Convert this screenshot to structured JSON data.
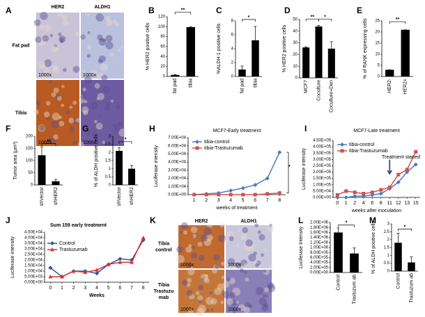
{
  "image_panels": [
    {
      "letter": "A",
      "columns": [
        "HER2",
        "ALDH1"
      ],
      "rows": [
        [
          "Fat pad"
        ],
        [
          "Tibia"
        ]
      ],
      "scale_label": "1000x"
    },
    {
      "letter": "K",
      "columns": [
        "HER2",
        "ALDH1"
      ],
      "rows": [
        [
          "Tibia",
          "control"
        ],
        [
          "Tibia",
          "Trastuzu",
          "mab"
        ]
      ],
      "scale_label": "1000x"
    }
  ],
  "chart_data": [
    {
      "type": "bar",
      "letter": "B",
      "ylabel": "% HER2 positive cells",
      "categories": [
        "fat pad",
        "tibia"
      ],
      "values": [
        3,
        99
      ],
      "errors": [
        1,
        1
      ],
      "color": "#000000",
      "ylim": [
        0,
        120
      ],
      "yticks": [
        0,
        20,
        40,
        60,
        80,
        100,
        120
      ],
      "annotations": [
        "**"
      ]
    },
    {
      "type": "bar",
      "letter": "C",
      "ylabel": "%ALDH-1 positive cells",
      "categories": [
        "fat pad",
        "tibia"
      ],
      "values": [
        1,
        5.2
      ],
      "errors": [
        0.5,
        2
      ],
      "color": "#000000",
      "ylim": [
        0,
        8
      ],
      "yticks": [
        0,
        2,
        4,
        6,
        8
      ],
      "annotations": [
        "*"
      ]
    },
    {
      "type": "bar",
      "letter": "D",
      "ylabel": "% HER2 positive cells",
      "categories": [
        "MCF7",
        "Coculture",
        "Coculture+Den"
      ],
      "values": [
        26,
        44,
        25
      ],
      "errors": [
        0.5,
        1,
        6
      ],
      "color": "#000000",
      "ylim": [
        0,
        50
      ],
      "yticks": [
        0,
        10,
        20,
        30,
        40,
        50
      ],
      "annotations": [
        "**",
        "*"
      ]
    },
    {
      "type": "bar",
      "letter": "E",
      "ylabel": "% of RANK expressing cells",
      "categories": [
        "HER2-",
        "HER2+"
      ],
      "values": [
        3,
        21
      ],
      "errors": [
        0,
        0
      ],
      "color": "#000000",
      "ylim": [
        0,
        25
      ],
      "yticks": [
        0,
        5,
        10,
        15,
        20,
        25
      ],
      "annotations": [
        "**"
      ]
    },
    {
      "type": "bar",
      "letter": "F",
      "ylabel": "Tumor area (μm³)",
      "categories": [
        "shVector",
        "shHER2"
      ],
      "values": [
        122,
        15
      ],
      "errors": [
        35,
        8
      ],
      "color": "#000000",
      "ylim": [
        0,
        200
      ],
      "yticks": [
        0,
        50,
        100,
        150,
        200
      ],
      "annotations": [
        "**"
      ]
    },
    {
      "type": "bar",
      "letter": "G",
      "ylabel": "% of ALDH positive cells",
      "categories": [
        "shVector",
        "shHER2"
      ],
      "values": [
        2.1,
        1.0
      ],
      "errors": [
        0.2,
        0.2
      ],
      "color": "#000000",
      "ylim": [
        0,
        3
      ],
      "yticks": [
        0,
        0.5,
        1,
        1.5,
        2,
        2.5,
        3
      ],
      "annotations": [
        "*"
      ]
    },
    {
      "type": "line",
      "letter": "H",
      "title": "MCF7-Early  treatment",
      "ylabel": "Luciferase intensity",
      "xlabel": "weeks of treatment",
      "categories": [
        "1",
        "2",
        "3",
        "4",
        "5",
        "6",
        "7",
        "8"
      ],
      "legend": "top-left",
      "series": [
        {
          "name": "tibia-control",
          "color": "#4a7cc0",
          "marker": "diamond",
          "values": [
            0,
            1000,
            2000,
            5000,
            8000,
            12000,
            20000,
            52000
          ]
        },
        {
          "name": "tibia-Trastuzumab",
          "color": "#d0504d",
          "marker": "square",
          "values": [
            0,
            0,
            0,
            0,
            0,
            0,
            1000,
            2000
          ]
        }
      ],
      "ylim": [
        0,
        70000
      ],
      "yticks": [
        {
          "value": 0,
          "label": "0.00E+00"
        },
        {
          "value": 10000,
          "label": "1.00E+04"
        },
        {
          "value": 20000,
          "label": "2.00E+04"
        },
        {
          "value": 30000,
          "label": "3.00E+04"
        },
        {
          "value": 40000,
          "label": "4.00E+04"
        },
        {
          "value": 50000,
          "label": "5.00E+04"
        },
        {
          "value": 60000,
          "label": "6.00E+04"
        },
        {
          "value": 70000,
          "label": "7.00E+04"
        }
      ],
      "annotations": [
        "*"
      ]
    },
    {
      "type": "line",
      "letter": "I",
      "title": "MCF7-Late treatment",
      "ylabel": "Luciferase intensity",
      "xlabel": "weeks after inoculation",
      "categories": [
        "0",
        "1",
        "2",
        "4",
        "6",
        "8",
        "11",
        "12",
        "13",
        "15"
      ],
      "legend": "top-left",
      "series": [
        {
          "name": "tibia-control",
          "color": "#4a7cc0",
          "marker": "diamond",
          "values": [
            0,
            0,
            10000,
            10000,
            20000,
            30000,
            70000,
            120000,
            200000,
            260000
          ]
        },
        {
          "name": "tibia-Trastuzumab",
          "color": "#d0504d",
          "marker": "square",
          "values": [
            20000,
            50000,
            40000,
            30000,
            40000,
            60000,
            80000,
            180000,
            220000,
            360000
          ]
        }
      ],
      "ylim": [
        0,
        450000
      ],
      "yticks": [
        {
          "value": 0,
          "label": "0.00E+00"
        },
        {
          "value": 50000,
          "label": "5.00E+04"
        },
        {
          "value": 100000,
          "label": "1.00E+05"
        },
        {
          "value": 150000,
          "label": "1.50E+05"
        },
        {
          "value": 200000,
          "label": "2.00E+05"
        },
        {
          "value": 250000,
          "label": "2.50E+05"
        },
        {
          "value": 300000,
          "label": "3.00E+05"
        },
        {
          "value": 350000,
          "label": "3.50E+05"
        },
        {
          "value": 400000,
          "label": "4.00E+05"
        },
        {
          "value": 450000,
          "label": "4.50E+05"
        }
      ],
      "annotations": [
        "Treatment started"
      ]
    },
    {
      "type": "line",
      "letter": "J",
      "title": "Sum 159 early treatment",
      "ylabel": "Luciferase intensity",
      "xlabel": "Weeks",
      "categories": [
        "0",
        "1",
        "2",
        "3",
        "4",
        "5",
        "6",
        "7",
        "8"
      ],
      "legend": "top-left",
      "series": [
        {
          "name": "Control",
          "color": "#2f5597",
          "marker": "diamond",
          "values": [
            13000,
            5000,
            10000,
            10000,
            8000,
            16000,
            21000,
            20000,
            38000
          ]
        },
        {
          "name": "Trastuzumab",
          "color": "#e03030",
          "marker": "triangle",
          "values": [
            5000,
            5000,
            10000,
            9000,
            11000,
            16000,
            18000,
            18000,
            40000
          ]
        }
      ],
      "ylim": [
        0,
        45000
      ],
      "yticks": [
        {
          "value": 0,
          "label": "0.00E+00"
        },
        {
          "value": 5000,
          "label": "5.00E+03"
        },
        {
          "value": 10000,
          "label": "1.00E+04"
        },
        {
          "value": 15000,
          "label": "1.50E+04"
        },
        {
          "value": 20000,
          "label": "2.00E+04"
        },
        {
          "value": 25000,
          "label": "2.50E+04"
        },
        {
          "value": 30000,
          "label": "3.00E+04"
        },
        {
          "value": 35000,
          "label": "3.50E+04"
        },
        {
          "value": 40000,
          "label": "4.00E+04"
        },
        {
          "value": 45000,
          "label": "4.50E+04"
        }
      ]
    },
    {
      "type": "bar",
      "letter": "L",
      "ylabel": "Luciferase Intensity",
      "categories": [
        "Control",
        "Trastuzum ab"
      ],
      "values": [
        1600000,
        760000
      ],
      "errors": [
        180000,
        220000
      ],
      "color": "#000000",
      "ylim": [
        0,
        2000000
      ],
      "yticks": [
        {
          "value": 0,
          "label": "0.00E+00"
        },
        {
          "value": 200000,
          "label": "2.00E+05"
        },
        {
          "value": 400000,
          "label": "4.00E+05"
        },
        {
          "value": 600000,
          "label": "6.00E+05"
        },
        {
          "value": 800000,
          "label": "8.00E+05"
        },
        {
          "value": 1000000,
          "label": "1.00E+06"
        },
        {
          "value": 1200000,
          "label": "1.20E+06"
        },
        {
          "value": 1400000,
          "label": "1.40E+06"
        },
        {
          "value": 1600000,
          "label": "1.60E+06"
        },
        {
          "value": 1800000,
          "label": "1.80E+06"
        },
        {
          "value": 2000000,
          "label": "2.00E+06"
        }
      ],
      "annotations": [
        "*"
      ]
    },
    {
      "type": "bar",
      "letter": "M",
      "ylabel": "% of ALDH positive cells",
      "categories": [
        "Control",
        "Trastuzum ab"
      ],
      "values": [
        1.8,
        0.55
      ],
      "errors": [
        0.6,
        0.35
      ],
      "color": "#000000",
      "ylim": [
        0,
        3
      ],
      "yticks": [
        0,
        0.5,
        1,
        1.5,
        2,
        2.5,
        3
      ],
      "annotations": [
        "*"
      ]
    }
  ]
}
